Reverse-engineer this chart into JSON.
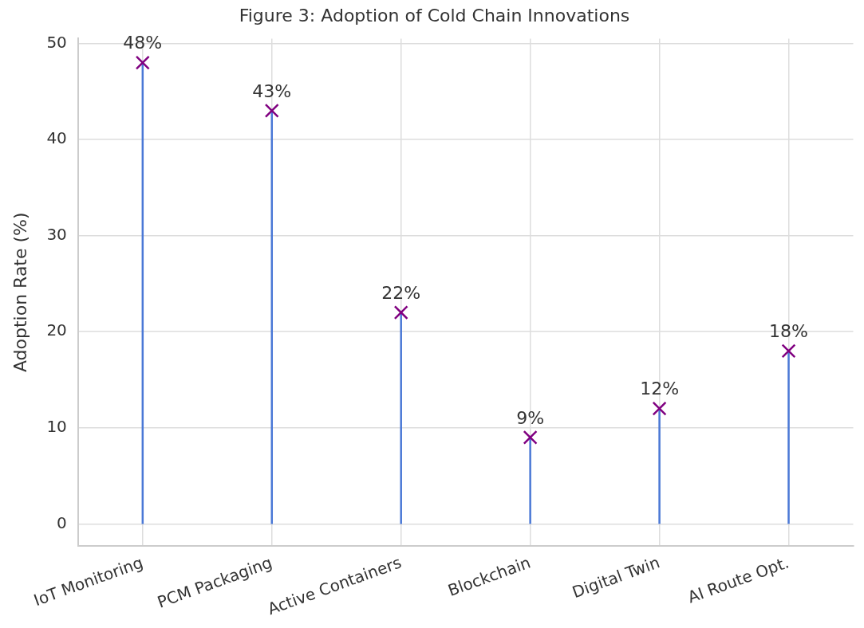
{
  "chart_data": {
    "type": "lollipop",
    "title": "Figure 3: Adoption of Cold Chain Innovations",
    "ylabel": "Adoption Rate (%)",
    "categories": [
      "IoT Monitoring",
      "PCM Packaging",
      "Active Containers",
      "Blockchain",
      "Digital Twin",
      "AI Route Opt."
    ],
    "series": [
      {
        "color": "#4a78d6",
        "colors": [
          "#800080",
          "#800080",
          "#800080",
          "#800080",
          "#800080",
          "#800080"
        ],
        "values": [
          48,
          43,
          22,
          9,
          12,
          18
        ],
        "value_labels": [
          "48%",
          "43%",
          "22%",
          "9%",
          "12%",
          "18%"
        ]
      }
    ],
    "ylim": [
      -2.3,
      50.5
    ],
    "yticks": [
      0,
      10,
      20,
      30,
      40,
      50
    ],
    "grid": true,
    "legend": false,
    "marker": "cross"
  }
}
